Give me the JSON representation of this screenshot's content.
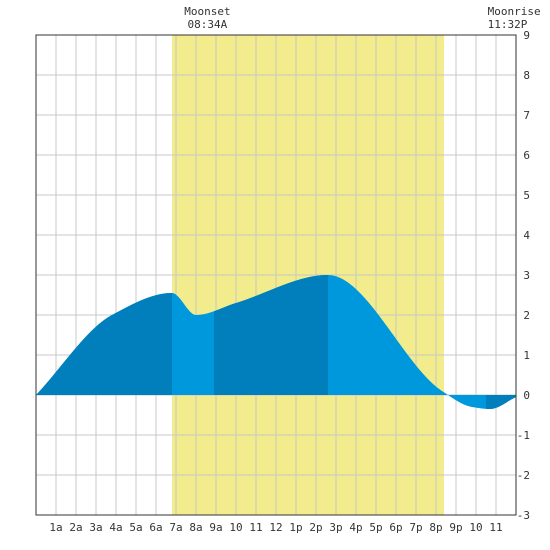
{
  "chart_data": {
    "type": "area",
    "title": "",
    "xlabel": "",
    "ylabel": "",
    "x_range_hours": [
      0,
      24
    ],
    "ylim": [
      -3,
      9
    ],
    "grid": true,
    "x_tick_labels": [
      "1a",
      "2a",
      "3a",
      "4a",
      "5a",
      "6a",
      "7a",
      "8a",
      "9a",
      "10",
      "11",
      "12",
      "1p",
      "2p",
      "3p",
      "4p",
      "5p",
      "6p",
      "7p",
      "8p",
      "9p",
      "10",
      "11"
    ],
    "y_tick_labels": [
      "-3",
      "-2",
      "-1",
      "0",
      "1",
      "2",
      "3",
      "4",
      "5",
      "6",
      "7",
      "8",
      "9"
    ],
    "daylight_hours": [
      6.8,
      20.4
    ],
    "annotations": [
      {
        "label": "Moonset",
        "time": "08:34A",
        "hour": 8.57
      },
      {
        "label": "Moonrise",
        "time": "11:32P",
        "hour": 23.53
      }
    ],
    "tide_points": [
      {
        "hour": 0.0,
        "height": 0.0
      },
      {
        "hour": 3.8,
        "height": 2.0
      },
      {
        "hour": 6.8,
        "height": 2.55
      },
      {
        "hour": 8.0,
        "height": 2.0
      },
      {
        "hour": 10.0,
        "height": 2.3
      },
      {
        "hour": 14.6,
        "height": 3.0
      },
      {
        "hour": 20.3,
        "height": 0.1
      },
      {
        "hour": 21.8,
        "height": -0.3
      },
      {
        "hour": 22.7,
        "height": -0.35
      },
      {
        "hour": 24.0,
        "height": -0.05
      }
    ],
    "shade_bands_hours": [
      [
        0,
        6.8
      ],
      [
        8.9,
        14.6
      ],
      [
        22.5,
        24
      ]
    ],
    "colors": {
      "daylight": "#f2ec8c",
      "grid": "#c8c8c8",
      "tide_light": "#0098dc",
      "tide_dark": "#007fbc",
      "axis": "#333333"
    }
  }
}
